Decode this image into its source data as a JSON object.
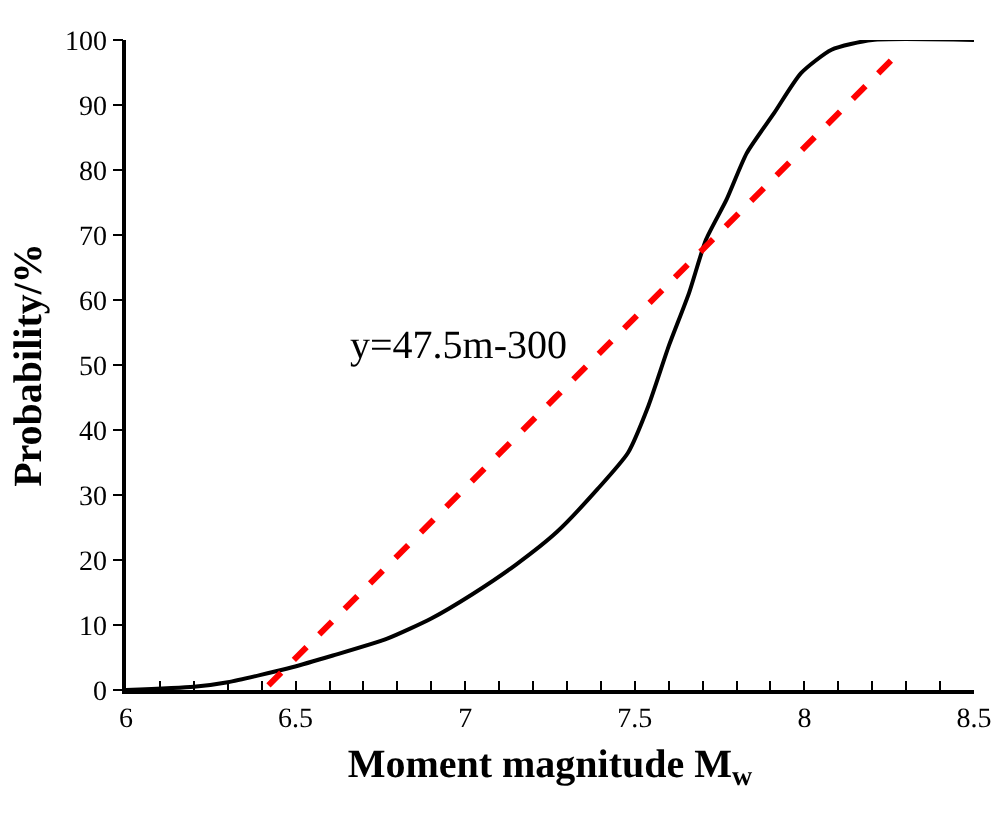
{
  "chart_data": {
    "type": "line",
    "xlabel": "Moment magnitude M$_{w}$",
    "ylabel": "Probability/%",
    "annotations": [
      "y=47.5m-300"
    ],
    "xlim": [
      6,
      8.5
    ],
    "xticks": [
      6,
      {
        "value": 6.1,
        "label": null
      },
      {
        "value": 6.2,
        "label": null
      },
      {
        "value": 6.3,
        "label": null
      },
      {
        "value": 6.4,
        "label": null
      },
      6.5,
      {
        "value": 6.6,
        "label": null
      },
      {
        "value": 6.7,
        "label": null
      },
      {
        "value": 6.8,
        "label": null
      },
      {
        "value": 6.9,
        "label": null
      },
      7,
      {
        "value": 7.1,
        "label": null
      },
      {
        "value": 7.2,
        "label": null
      },
      {
        "value": 7.3,
        "label": null
      },
      {
        "value": 7.4,
        "label": null
      },
      7.5,
      {
        "value": 7.6,
        "label": null
      },
      {
        "value": 7.7,
        "label": null
      },
      {
        "value": 7.8,
        "label": null
      },
      {
        "value": 7.9,
        "label": null
      },
      8,
      {
        "value": 8.1,
        "label": null
      },
      {
        "value": 8.2,
        "label": null
      },
      {
        "value": 8.3,
        "label": null
      },
      {
        "value": 8.4,
        "label": null
      },
      8.5
    ],
    "ylim": [
      0,
      100
    ],
    "yticks": [
      0,
      10,
      20,
      30,
      40,
      50,
      60,
      70,
      80,
      90,
      100
    ],
    "grid": false,
    "marker": "none",
    "series": [
      {
        "color": "#000000",
        "line_style": "solid",
        "x": [
          6,
          6.2,
          6.3,
          6.49,
          6.61,
          6.77,
          6.9,
          7.02,
          7.15,
          7.27,
          7.39,
          7.48,
          7.54,
          7.6,
          7.66,
          7.71,
          7.77,
          7.83,
          7.91,
          7.99,
          8.08,
          8.2,
          8.5
        ],
        "values": [
          0,
          0.5,
          1.2,
          3.5,
          5.3,
          7.9,
          11,
          14.7,
          19.3,
          24.3,
          30.9,
          36.5,
          43.7,
          52.9,
          61.1,
          69.3,
          75.4,
          82.6,
          88.7,
          94.9,
          98.5,
          100,
          100
        ]
      },
      {
        "color": "#ff0000",
        "line_style": "dashed",
        "x": [
          6.42,
          8.26
        ],
        "values": [
          0.7,
          97.1
        ]
      }
    ]
  }
}
